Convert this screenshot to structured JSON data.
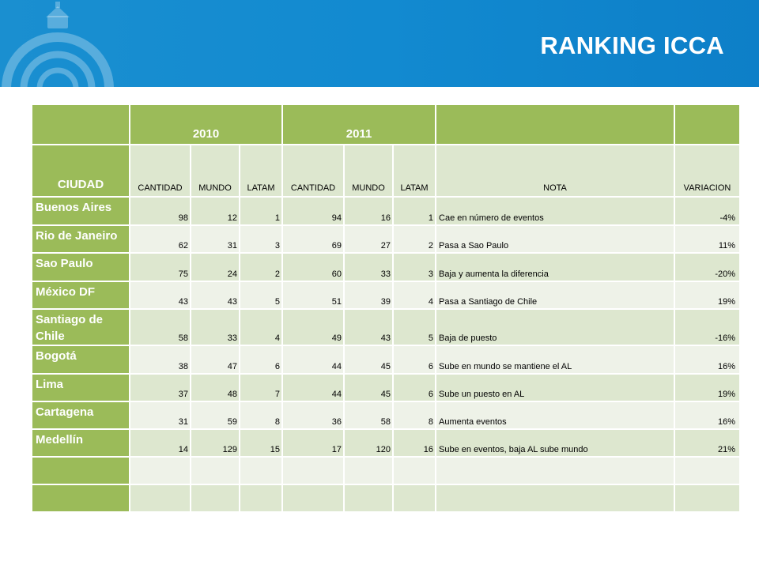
{
  "header": {
    "title": "RANKING ICCA",
    "background": "#1488cf"
  },
  "table": {
    "years": [
      "2010",
      "2011"
    ],
    "city_header": "CIUDAD",
    "columns": [
      "CANTIDAD",
      "MUNDO",
      "LATAM",
      "CANTIDAD",
      "MUNDO",
      "LATAM",
      "NOTA",
      "VARIACION"
    ],
    "rows": [
      {
        "city": "Buenos Aires",
        "c2010": "98",
        "m2010": "12",
        "l2010": "1",
        "c2011": "94",
        "m2011": "16",
        "l2011": "1",
        "nota": "Cae en número de eventos",
        "variacion": "-4%"
      },
      {
        "city": "Rio de Janeiro",
        "c2010": "62",
        "m2010": "31",
        "l2010": "3",
        "c2011": "69",
        "m2011": "27",
        "l2011": "2",
        "nota": "Pasa a Sao Paulo",
        "variacion": "11%"
      },
      {
        "city": "Sao Paulo",
        "c2010": "75",
        "m2010": "24",
        "l2010": "2",
        "c2011": "60",
        "m2011": "33",
        "l2011": "3",
        "nota": "Baja y aumenta la diferencia",
        "variacion": "-20%"
      },
      {
        "city": "México DF",
        "c2010": "43",
        "m2010": "43",
        "l2010": "5",
        "c2011": "51",
        "m2011": "39",
        "l2011": "4",
        "nota": "Pasa a Santiago de Chile",
        "variacion": "19%"
      },
      {
        "city": "Santiago de Chile",
        "c2010": "58",
        "m2010": "33",
        "l2010": "4",
        "c2011": "49",
        "m2011": "43",
        "l2011": "5",
        "nota": "Baja de puesto",
        "variacion": "-16%"
      },
      {
        "city": "Bogotá",
        "c2010": "38",
        "m2010": "47",
        "l2010": "6",
        "c2011": "44",
        "m2011": "45",
        "l2011": "6",
        "nota": "Sube en mundo se mantiene el AL",
        "variacion": "16%"
      },
      {
        "city": "Lima",
        "c2010": "37",
        "m2010": "48",
        "l2010": "7",
        "c2011": "44",
        "m2011": "45",
        "l2011": "6",
        "nota": "Sube un puesto en AL",
        "variacion": "19%"
      },
      {
        "city": "Cartagena",
        "c2010": "31",
        "m2010": "59",
        "l2010": "8",
        "c2011": "36",
        "m2011": "58",
        "l2011": "8",
        "nota": "Aumenta eventos",
        "variacion": "16%"
      },
      {
        "city": "Medellín",
        "c2010": "14",
        "m2010": "129",
        "l2010": "15",
        "c2011": "17",
        "m2011": "120",
        "l2011": "16",
        "nota": "Sube en eventos, baja AL sube mundo",
        "variacion": "21%"
      }
    ]
  }
}
